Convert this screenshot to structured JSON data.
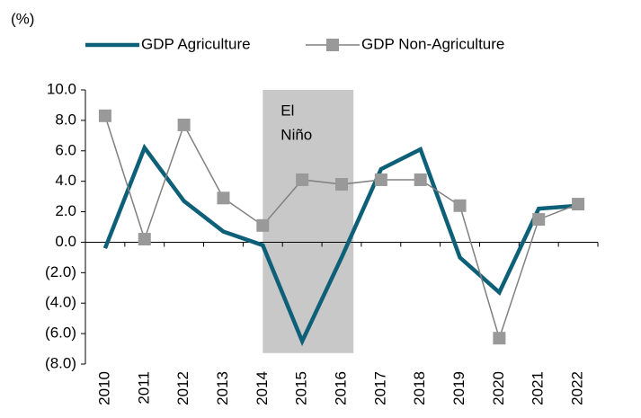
{
  "chart_data": {
    "type": "line",
    "y_unit": "(%)",
    "categories": [
      "2010",
      "2011",
      "2012",
      "2013",
      "2014",
      "2015",
      "2016",
      "2017",
      "2018",
      "2019",
      "2020",
      "2021",
      "2022"
    ],
    "series": [
      {
        "name": "GDP Agriculture",
        "color": "#0e5f78",
        "marker": "none",
        "values": [
          -0.4,
          6.2,
          2.7,
          0.7,
          -0.2,
          -6.5,
          -1.0,
          4.8,
          6.1,
          -1.0,
          -3.3,
          2.2,
          2.4
        ]
      },
      {
        "name": "GDP Non-Agriculture",
        "color": "#808080",
        "marker": "square",
        "values": [
          8.3,
          0.2,
          7.7,
          2.9,
          1.1,
          4.1,
          3.8,
          4.1,
          4.1,
          2.4,
          -6.3,
          1.5,
          2.5
        ]
      }
    ],
    "ylim": [
      -8,
      10
    ],
    "yticks": [
      {
        "value": -8,
        "label": "(8.0)"
      },
      {
        "value": -6,
        "label": "(6.0)"
      },
      {
        "value": -4,
        "label": "(4.0)"
      },
      {
        "value": -2,
        "label": "(2.0)"
      },
      {
        "value": 0,
        "label": "0.0"
      },
      {
        "value": 2,
        "label": "2.0"
      },
      {
        "value": 4,
        "label": "4.0"
      },
      {
        "value": 6,
        "label": "6.0"
      },
      {
        "value": 8,
        "label": "8.0"
      },
      {
        "value": 10,
        "label": "10.0"
      }
    ],
    "shaded_region": {
      "from": "2014",
      "to": "2016",
      "color": "#c8c8c8",
      "label_lines": [
        "El",
        "Niño"
      ]
    },
    "grid": false,
    "legend": "top"
  }
}
